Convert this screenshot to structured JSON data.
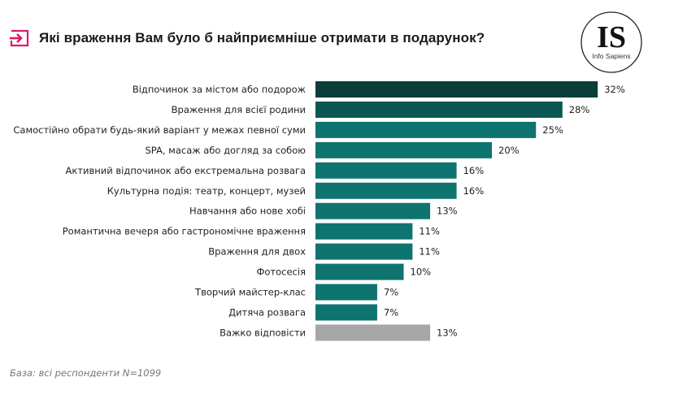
{
  "title": "Які враження Вам було б найприємніше отримати в подарунок?",
  "logo": {
    "mark": "IS",
    "caption": "Info Sapiens"
  },
  "base_note": "База: всі респонденти N=1099",
  "colors": {
    "accent": "#e0196a",
    "top": "#0b3d3a",
    "second": "#0a5753",
    "main": "#0e7470",
    "neutral": "#a6a6a6"
  },
  "chart_data": {
    "type": "bar",
    "orientation": "horizontal",
    "title": "Які враження Вам було б найприємніше отримати в подарунок?",
    "categories": [
      "Відпочинок за містом або подорож",
      "Враження для всієї родини",
      "Самостійно обрати будь-який варіант у межах певної суми",
      "SPA, масаж або догляд за собою",
      "Активний відпочинок або екстремальна розвага",
      "Культурна подія: театр, концерт, музей",
      "Навчання або нове хобі",
      "Романтична вечеря або гастрономічне враження",
      "Враження для двох",
      "Фотосесія",
      "Творчий майстер-клас",
      "Дитяча розвага",
      "Важко відповісти"
    ],
    "values": [
      32,
      28,
      25,
      20,
      16,
      16,
      13,
      11,
      11,
      10,
      7,
      7,
      13
    ],
    "value_labels": [
      "32%",
      "28%",
      "25%",
      "20%",
      "16%",
      "16%",
      "13%",
      "11%",
      "11%",
      "10%",
      "7%",
      "7%",
      "13%"
    ],
    "unit": "%",
    "xlim": [
      0,
      32
    ],
    "grid": false,
    "legend": "none"
  }
}
